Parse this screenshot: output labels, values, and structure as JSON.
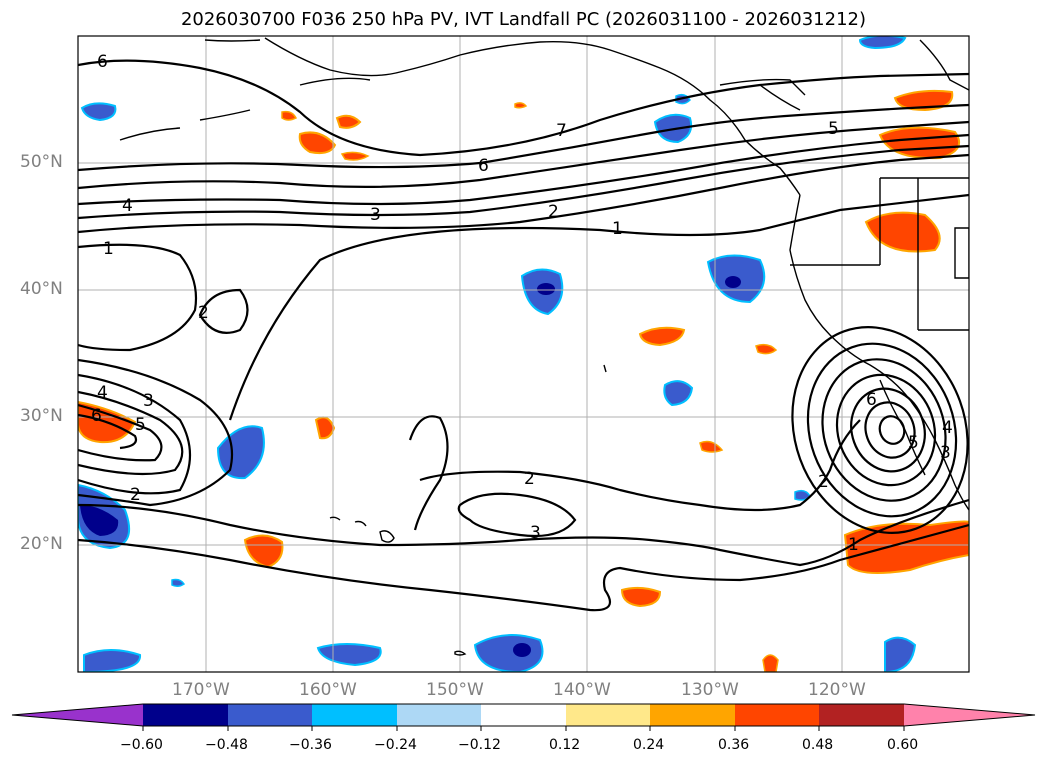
{
  "title": "2026030700 F036 250 hPa PV, IVT Landfall PC (2026031100 - 2026031212)",
  "axes": {
    "lat_labels": [
      "50°N",
      "40°N",
      "30°N",
      "20°N"
    ],
    "lon_labels": [
      "170°W",
      "160°W",
      "150°W",
      "140°W",
      "130°W",
      "120°W"
    ]
  },
  "contour_labels": [
    "6",
    "7",
    "6",
    "5",
    "4",
    "3",
    "2",
    "1",
    "1",
    "2",
    "4",
    "3",
    "6",
    "5",
    "2",
    "2",
    "3",
    "2",
    "1",
    "6",
    "5",
    "4",
    "3"
  ],
  "colorbar": {
    "ticks": [
      "−0.60",
      "−0.48",
      "−0.36",
      "−0.24",
      "−0.12",
      "0.12",
      "0.24",
      "0.36",
      "0.48",
      "0.60"
    ],
    "colors": [
      "#9932cc",
      "#00008b",
      "#3a5bcd",
      "#00bfff",
      "#add8f5",
      "#ffffff",
      "#ffe88a",
      "#ffa500",
      "#ff4500",
      "#b22222",
      "#ff82ab"
    ]
  }
}
